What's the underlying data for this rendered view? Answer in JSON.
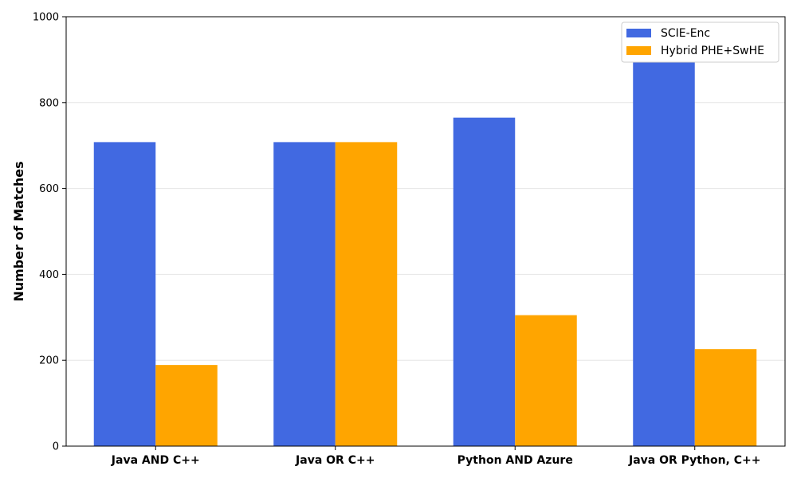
{
  "chart_data": {
    "type": "bar",
    "title": "",
    "xlabel": "",
    "ylabel": "Number of Matches",
    "categories": [
      "Java AND C++",
      "Java OR C++",
      "Python AND Azure",
      "Java OR Python, C++"
    ],
    "series": [
      {
        "name": "SCIE-Enc",
        "values": [
          708,
          708,
          765,
          895
        ],
        "color": "#4169E1"
      },
      {
        "name": "Hybrid PHE+SwHE",
        "values": [
          189,
          708,
          305,
          226
        ],
        "color": "#FFA500"
      }
    ],
    "ylim": [
      0,
      1000
    ],
    "yticks": [
      0,
      200,
      400,
      600,
      800,
      1000
    ],
    "grid": true,
    "legend_position": "top-right"
  }
}
